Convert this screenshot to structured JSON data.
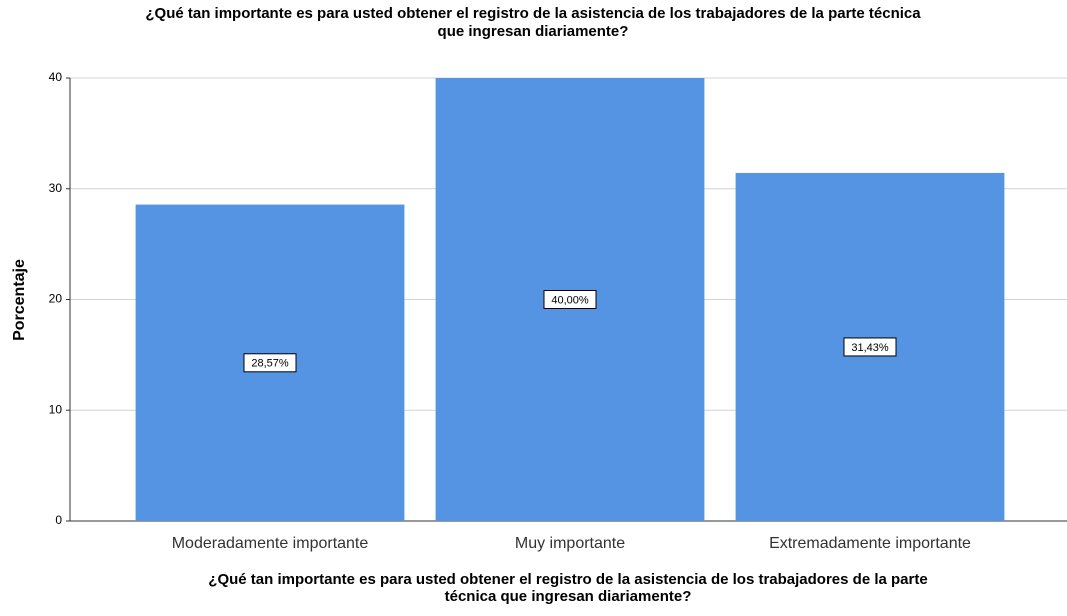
{
  "chart_data": {
    "type": "bar",
    "title": [
      "¿Qué tan importante es para usted obtener el registro de la asistencia de los trabajadores de la parte técnica",
      "que ingresan diariamente?"
    ],
    "x_label": [
      "¿Qué tan importante es para usted obtener el registro de la asistencia de los trabajadores de la parte",
      "técnica que ingresan diariamente?"
    ],
    "y_label": "Porcentaje",
    "categories": [
      "Moderadamente importante",
      "Muy importante",
      "Extremadamente importante"
    ],
    "values": [
      28.57,
      40.0,
      31.43
    ],
    "value_labels": [
      "28,57%",
      "40,00%",
      "31,43%"
    ],
    "color": "#5594e3",
    "ylim": [
      0,
      40
    ],
    "yticks": [
      0,
      10,
      20,
      30,
      40
    ],
    "grid": true
  }
}
